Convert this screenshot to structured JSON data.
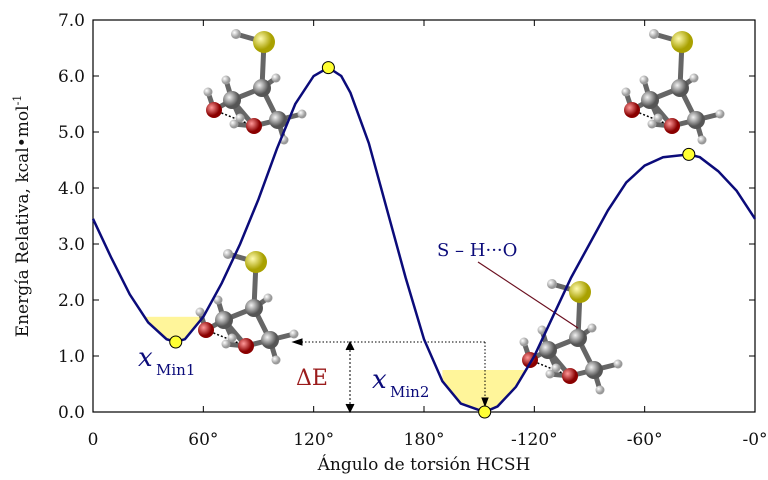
{
  "chart_data": {
    "type": "line",
    "xlabel": "Ángulo de torsión HCSH",
    "ylabel": "Energía Relativa, kcal•mol",
    "ylabel_sup": "-1",
    "xlim": [
      0,
      360
    ],
    "ylim": [
      0,
      7
    ],
    "xticks": [
      0,
      {
        "value": 60,
        "label": "60°"
      },
      {
        "value": 120,
        "label": "120°"
      },
      {
        "value": 180,
        "label": "180°"
      },
      {
        "value": 240,
        "label": "-120°"
      },
      {
        "value": 300,
        "label": "-60°"
      },
      {
        "value": 360,
        "label": "-0°"
      }
    ],
    "yticks": [
      {
        "value": 0,
        "label": "0.0"
      },
      {
        "value": 1,
        "label": "1.0"
      },
      {
        "value": 2,
        "label": "2.0"
      },
      {
        "value": 3,
        "label": "3.0"
      },
      {
        "value": 4,
        "label": "4.0"
      },
      {
        "value": 5,
        "label": "5.0"
      },
      {
        "value": 6,
        "label": "6.0"
      },
      {
        "value": 7,
        "label": "7.0"
      }
    ],
    "x": [
      0,
      10,
      20,
      30,
      40,
      45,
      50,
      60,
      70,
      80,
      90,
      100,
      110,
      120,
      128,
      135,
      140,
      150,
      160,
      170,
      180,
      190,
      200,
      213,
      220,
      230,
      240,
      250,
      260,
      270,
      280,
      290,
      300,
      310,
      324,
      330,
      340,
      350,
      360
    ],
    "values": [
      3.45,
      2.75,
      2.1,
      1.6,
      1.3,
      1.25,
      1.3,
      1.7,
      2.3,
      3.0,
      3.8,
      4.7,
      5.5,
      6.0,
      6.15,
      6.0,
      5.7,
      4.8,
      3.6,
      2.4,
      1.3,
      0.55,
      0.15,
      0.0,
      0.1,
      0.45,
      1.0,
      1.7,
      2.4,
      3.0,
      3.6,
      4.1,
      4.4,
      4.55,
      4.6,
      4.55,
      4.3,
      3.95,
      3.45
    ],
    "color": "#0b0b7a",
    "points": {
      "x": [
        45,
        128,
        213,
        324
      ],
      "values": [
        1.25,
        6.15,
        0.0,
        4.6
      ],
      "color": "#ffff33"
    },
    "wells": [
      {
        "x": [
          25,
          66
        ],
        "level": 1.7
      },
      {
        "x": [
          190,
          247
        ],
        "level": 0.75
      }
    ],
    "well_color": "#fff59a",
    "min_labels": [
      {
        "text": "x",
        "sub": "Min1"
      },
      {
        "text": "x",
        "sub": "Min2"
      }
    ],
    "delta_label": "ΔE",
    "hbond_label": "S – H···O"
  }
}
